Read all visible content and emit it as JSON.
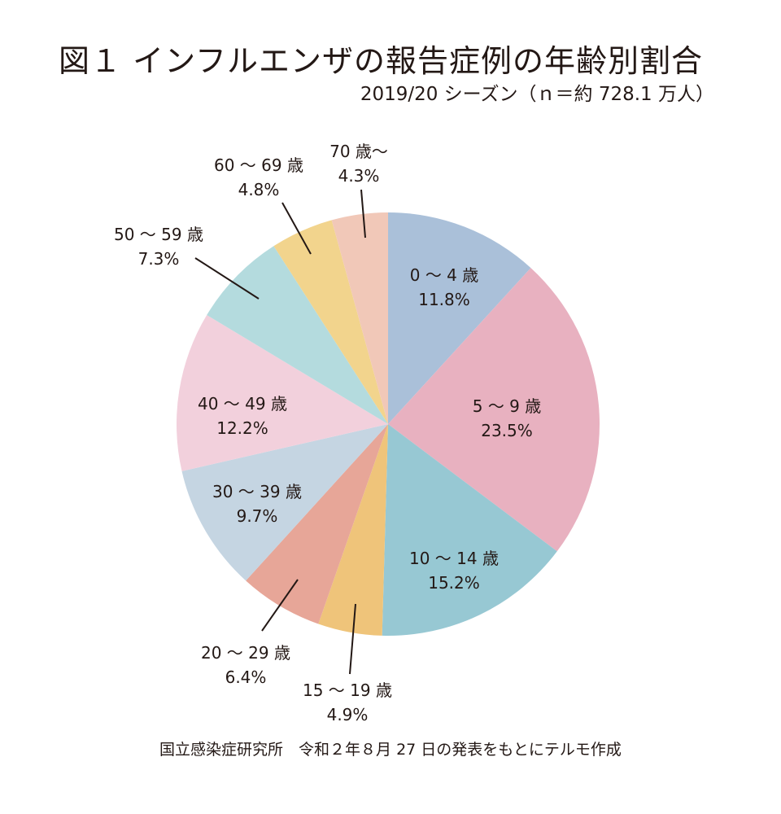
{
  "chart_data": {
    "type": "pie",
    "title": "図１ インフルエンザの報告症例の年齢別割合",
    "subtitle": "2019/20 シーズン（ｎ＝約 728.1 万人）",
    "source": "国立感染症研究所　令和２年８月 27 日の発表をもとにテルモ作成",
    "start": "top",
    "direction": "clockwise",
    "slices": [
      {
        "label": "0 〜 4 歳",
        "value": 11.8,
        "value_label": "11.8%",
        "color": "#aac0d9"
      },
      {
        "label": "5 〜 9 歳",
        "value": 23.5,
        "value_label": "23.5%",
        "color": "#e8b1c0"
      },
      {
        "label": "10 〜 14 歳",
        "value": 15.2,
        "value_label": "15.2%",
        "color": "#97c8d3"
      },
      {
        "label": "15 〜 19 歳",
        "value": 4.9,
        "value_label": "4.9%",
        "color": "#efc47a"
      },
      {
        "label": "20 〜 29 歳",
        "value": 6.4,
        "value_label": "6.4%",
        "color": "#e7a698"
      },
      {
        "label": "30 〜 39 歳",
        "value": 9.7,
        "value_label": "9.7%",
        "color": "#c5d5e2"
      },
      {
        "label": "40 〜 49 歳",
        "value": 12.2,
        "value_label": "12.2%",
        "color": "#f2d0dc"
      },
      {
        "label": "50 〜 59 歳",
        "value": 7.3,
        "value_label": "7.3%",
        "color": "#b4dbde"
      },
      {
        "label": "60 〜 69 歳",
        "value": 4.8,
        "value_label": "4.8%",
        "color": "#f2d48d"
      },
      {
        "label": "70 歳〜",
        "value": 4.3,
        "value_label": "4.3%",
        "color": "#f1c8b8"
      }
    ]
  }
}
